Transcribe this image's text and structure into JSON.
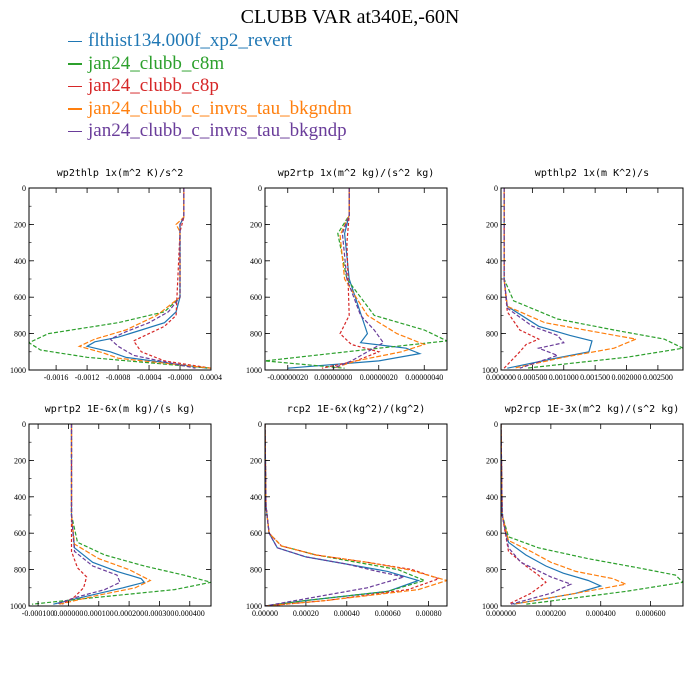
{
  "title": "CLUBB VAR at340E,-60N",
  "colors": {
    "flthist134.000f_xp2_revert": "#1f77b4",
    "jan24_clubb_c8m": "#2ca02c",
    "jan24_clubb_c8p": "#d62728",
    "jan24_clubb_c_invrs_tau_bkgndm": "#ff7f0e",
    "jan24_clubb_c_invrs_tau_bkgndp": "#6a3d9a"
  },
  "legend": [
    {
      "label": "flthist134.000f_xp2_revert",
      "color": "#1f77b4"
    },
    {
      "label": "jan24_clubb_c8m",
      "color": "#2ca02c"
    },
    {
      "label": "jan24_clubb_c8p",
      "color": "#d62728"
    },
    {
      "label": "jan24_clubb_c_invrs_tau_bkgndm",
      "color": "#ff7f0e"
    },
    {
      "label": "jan24_clubb_c_invrs_tau_bkgndp",
      "color": "#6a3d9a"
    }
  ],
  "chart_data": [
    {
      "type": "line",
      "title": "wp2thlp  1x(m^2 K)/s^2",
      "xlim": [
        -0.00195,
        0.0004
      ],
      "ylim": [
        1000,
        0
      ],
      "xticks": [
        "-0.0016",
        "-0.0012",
        "-0.0008",
        "-0.0004",
        "-0.0000",
        "0.0004"
      ],
      "xtick_values": [
        -0.0016,
        -0.0012,
        -0.0008,
        -0.0004,
        0.0,
        0.0004
      ],
      "yticks": [
        "0",
        "200",
        "400",
        "600",
        "800",
        "1000"
      ],
      "ytick_values": [
        0,
        200,
        400,
        600,
        800,
        1000
      ],
      "series": [
        {
          "name": "flthist134.000f_xp2_revert",
          "x": [
            5e-05,
            5e-05,
            0.0,
            0.0,
            0.0,
            -5e-05,
            -0.0002,
            -0.0005,
            -0.0008,
            -0.0011,
            -0.0012,
            -0.0009,
            -0.0007,
            0.00035
          ],
          "y": [
            0,
            160,
            200,
            240,
            600,
            680,
            740,
            780,
            820,
            845,
            870,
            900,
            930,
            990
          ]
        },
        {
          "name": "jan24_clubb_c8m",
          "x": [
            5e-05,
            5e-05,
            0.0,
            0.0,
            -0.0002,
            -0.0008,
            -0.0017,
            -0.00195,
            -0.0018,
            -0.0012,
            0.0004
          ],
          "y": [
            0,
            160,
            200,
            600,
            680,
            740,
            800,
            850,
            890,
            930,
            990
          ]
        },
        {
          "name": "jan24_clubb_c8p",
          "x": [
            5e-05,
            5e-05,
            0.0,
            -5e-05,
            -0.0002,
            -0.0004,
            -0.0006,
            -0.0005,
            -0.0002,
            0.0004
          ],
          "y": [
            0,
            160,
            240,
            700,
            760,
            800,
            840,
            900,
            950,
            990
          ]
        },
        {
          "name": "jan24_clubb_c_invrs_tau_bkgndm",
          "x": [
            5e-05,
            5e-05,
            -5e-05,
            0.0,
            0.0,
            -0.0003,
            -0.0007,
            -0.0011,
            -0.0013,
            -0.001,
            -0.0008,
            0.0004
          ],
          "y": [
            0,
            160,
            200,
            240,
            600,
            700,
            780,
            830,
            870,
            905,
            935,
            990
          ]
        },
        {
          "name": "jan24_clubb_c_invrs_tau_bkgndp",
          "x": [
            5e-05,
            5e-05,
            0.0,
            0.0,
            -0.00015,
            -0.0004,
            -0.0007,
            -0.0009,
            -0.0008,
            -0.0006,
            0.0002
          ],
          "y": [
            0,
            160,
            200,
            600,
            680,
            740,
            790,
            830,
            870,
            920,
            990
          ]
        }
      ]
    },
    {
      "type": "line",
      "title": "wp2rtp  1x(m^2 kg)/(s^2 kg)",
      "xlim": [
        -3e-07,
        5e-07
      ],
      "ylim": [
        1000,
        0
      ],
      "xticks": [
        "-0.00000020",
        "0.00000000",
        "0.00000020",
        "0.00000040"
      ],
      "xtick_values": [
        -2e-07,
        0.0,
        2e-07,
        4e-07
      ],
      "yticks": [
        "0",
        "200",
        "400",
        "600",
        "800",
        "1000"
      ],
      "ytick_values": [
        0,
        200,
        400,
        600,
        800,
        1000
      ],
      "series": [
        {
          "name": "flthist134.000f_xp2_revert",
          "x": [
            7e-08,
            7e-08,
            5e-08,
            7e-08,
            1.5e-07,
            1.2e-07,
            3.2e-07,
            3.8e-07,
            2e-07,
            -2e-07
          ],
          "y": [
            0,
            150,
            250,
            500,
            800,
            850,
            880,
            910,
            950,
            990
          ]
        },
        {
          "name": "jan24_clubb_c8m",
          "x": [
            7e-08,
            7e-08,
            2e-08,
            6e-08,
            1.8e-07,
            4e-07,
            5e-07,
            2e-07,
            -3e-07,
            5e-08
          ],
          "y": [
            0,
            150,
            250,
            500,
            700,
            780,
            840,
            880,
            950,
            990
          ]
        },
        {
          "name": "jan24_clubb_c8p",
          "x": [
            7e-08,
            7e-08,
            6e-08,
            7e-08,
            3e-08,
            8e-08,
            2e-07,
            1e-07,
            -5e-08
          ],
          "y": [
            0,
            150,
            300,
            700,
            800,
            860,
            900,
            950,
            990
          ]
        },
        {
          "name": "jan24_clubb_c_invrs_tau_bkgndm",
          "x": [
            7e-08,
            7e-08,
            3e-08,
            5e-08,
            1.5e-07,
            2.8e-07,
            4e-07,
            3e-07,
            1e-07,
            0.0
          ],
          "y": [
            0,
            150,
            260,
            500,
            700,
            800,
            860,
            900,
            950,
            990
          ]
        },
        {
          "name": "jan24_clubb_c_invrs_tau_bkgndp",
          "x": [
            7e-08,
            7e-08,
            4e-08,
            6e-08,
            1.2e-07,
            1.8e-07,
            2.2e-07,
            1.5e-07,
            8e-08,
            0.0
          ],
          "y": [
            0,
            150,
            250,
            500,
            700,
            780,
            850,
            900,
            950,
            990
          ]
        }
      ]
    },
    {
      "type": "line",
      "title": "wpthlp2  1x(m K^2)/s",
      "xlim": [
        0.0,
        0.0029
      ],
      "ylim": [
        1000,
        0
      ],
      "xticks": [
        "0.000000",
        "0.000500",
        "0.001000",
        "0.001500",
        "0.002000",
        "0.002500"
      ],
      "xtick_values": [
        0.0,
        0.0005,
        0.001,
        0.0015,
        0.002,
        0.0025
      ],
      "yticks": [
        "0",
        "200",
        "400",
        "600",
        "800",
        "1000"
      ],
      "ytick_values": [
        0,
        200,
        400,
        600,
        800,
        1000
      ],
      "series": [
        {
          "name": "flthist134.000f_xp2_revert",
          "x": [
            5e-05,
            5e-05,
            0.0001,
            0.0006,
            0.0011,
            0.00145,
            0.0014,
            0.0008,
            0.0001
          ],
          "y": [
            0,
            500,
            650,
            760,
            810,
            840,
            900,
            940,
            990
          ]
        },
        {
          "name": "jan24_clubb_c8m",
          "x": [
            5e-05,
            5e-05,
            0.0002,
            0.0009,
            0.0018,
            0.0026,
            0.0029,
            0.002,
            0.0004
          ],
          "y": [
            0,
            500,
            620,
            720,
            780,
            830,
            880,
            930,
            990
          ]
        },
        {
          "name": "jan24_clubb_c8p",
          "x": [
            5e-05,
            5e-05,
            0.0001,
            0.0003,
            0.0006,
            0.0004,
            0.0003,
            5e-05
          ],
          "y": [
            0,
            500,
            680,
            780,
            830,
            860,
            900,
            990
          ]
        },
        {
          "name": "jan24_clubb_c_invrs_tau_bkgndm",
          "x": [
            5e-05,
            5e-05,
            0.0001,
            0.0007,
            0.0015,
            0.00215,
            0.0018,
            0.001,
            0.0002
          ],
          "y": [
            0,
            500,
            650,
            740,
            790,
            830,
            880,
            930,
            990
          ]
        },
        {
          "name": "jan24_clubb_c_invrs_tau_bkgndp",
          "x": [
            5e-05,
            5e-05,
            0.0001,
            0.0005,
            0.0009,
            0.001,
            0.0006,
            0.0009,
            0.0003
          ],
          "y": [
            0,
            500,
            660,
            760,
            810,
            850,
            880,
            920,
            990
          ]
        }
      ]
    },
    {
      "type": "line",
      "title": "wprtp2  1E-6x(m kg)/(s kg)",
      "xlim": [
        -0.00013,
        0.00047
      ],
      "ylim": [
        1000,
        0
      ],
      "xticks": [
        "-0.000100",
        "0.000000",
        "0.000100",
        "0.000200",
        "0.000300",
        "0.000400"
      ],
      "xtick_values": [
        -0.0001,
        0.0,
        0.0001,
        0.0002,
        0.0003,
        0.0004
      ],
      "yticks": [
        "0",
        "200",
        "400",
        "600",
        "800",
        "1000"
      ],
      "ytick_values": [
        0,
        200,
        400,
        600,
        800,
        1000
      ],
      "series": [
        {
          "name": "flthist134.000f_xp2_revert",
          "x": [
            1e-05,
            1e-05,
            2e-05,
            8e-05,
            0.00016,
            0.00024,
            0.00025,
            0.00018,
            5e-05,
            -5e-05
          ],
          "y": [
            0,
            500,
            680,
            760,
            810,
            850,
            870,
            900,
            950,
            990
          ]
        },
        {
          "name": "jan24_clubb_c8m",
          "x": [
            1e-05,
            1e-05,
            3e-05,
            0.00012,
            0.00025,
            0.00038,
            0.00047,
            0.00035,
            5e-05,
            -0.00012
          ],
          "y": [
            0,
            500,
            650,
            720,
            780,
            830,
            870,
            910,
            960,
            990
          ]
        },
        {
          "name": "jan24_clubb_c8p",
          "x": [
            1e-05,
            1e-05,
            1e-05,
            3e-05,
            6e-05,
            5e-05,
            2e-05,
            -2e-05
          ],
          "y": [
            0,
            500,
            700,
            790,
            840,
            900,
            950,
            990
          ]
        },
        {
          "name": "jan24_clubb_c_invrs_tau_bkgndm",
          "x": [
            1e-05,
            1e-05,
            2e-05,
            0.0001,
            0.0002,
            0.00027,
            0.00022,
            0.0001,
            -3e-05
          ],
          "y": [
            0,
            500,
            660,
            740,
            800,
            860,
            900,
            940,
            990
          ]
        },
        {
          "name": "jan24_clubb_c_invrs_tau_bkgndp",
          "x": [
            1e-05,
            1e-05,
            2e-05,
            8e-05,
            0.00016,
            0.00017,
            0.00012,
            3e-05,
            -4e-05
          ],
          "y": [
            0,
            500,
            700,
            780,
            830,
            870,
            910,
            950,
            990
          ]
        }
      ]
    },
    {
      "type": "line",
      "title": "rcp2  1E-6x(kg^2)/(kg^2)",
      "xlim": [
        0.0,
        0.00089
      ],
      "ylim": [
        1000,
        0
      ],
      "xticks": [
        "0.00000",
        "0.00020",
        "0.00040",
        "0.00060",
        "0.00080"
      ],
      "xtick_values": [
        0.0,
        0.0002,
        0.0004,
        0.0006,
        0.0008
      ],
      "yticks": [
        "0",
        "200",
        "400",
        "600",
        "800",
        "1000"
      ],
      "ytick_values": [
        0,
        200,
        400,
        600,
        800,
        1000
      ],
      "series": [
        {
          "name": "flthist134.000f_xp2_revert",
          "x": [
            0.0,
            5e-06,
            2e-05,
            6e-05,
            0.0002,
            0.0004,
            0.0006,
            0.00075,
            0.0006,
            0.0002,
            0.0
          ],
          "y": [
            0,
            450,
            600,
            680,
            730,
            770,
            810,
            860,
            920,
            970,
            1000
          ]
        },
        {
          "name": "jan24_clubb_c8m",
          "x": [
            0.0,
            5e-06,
            2e-05,
            8e-05,
            0.00025,
            0.00045,
            0.00065,
            0.00078,
            0.0006,
            0.0002,
            0.0
          ],
          "y": [
            0,
            450,
            600,
            670,
            720,
            760,
            800,
            860,
            920,
            970,
            1000
          ]
        },
        {
          "name": "jan24_clubb_c8p",
          "x": [
            0.0,
            5e-06,
            2e-05,
            8e-05,
            0.00025,
            0.0005,
            0.00072,
            0.00085,
            0.0007,
            0.0003,
            0.0
          ],
          "y": [
            0,
            450,
            600,
            670,
            720,
            760,
            800,
            850,
            910,
            970,
            1000
          ]
        },
        {
          "name": "jan24_clubb_c_invrs_tau_bkgndm",
          "x": [
            0.0,
            5e-06,
            2e-05,
            8e-05,
            0.00025,
            0.0005,
            0.0007,
            0.00089,
            0.00075,
            0.0003,
            0.0
          ],
          "y": [
            0,
            450,
            600,
            670,
            720,
            760,
            800,
            860,
            910,
            970,
            1000
          ]
        },
        {
          "name": "jan24_clubb_c_invrs_tau_bkgndp",
          "x": [
            0.0,
            5e-06,
            2e-05,
            6e-05,
            0.0002,
            0.0004,
            0.00055,
            0.00068,
            0.0005,
            0.0002,
            0.0
          ],
          "y": [
            0,
            450,
            600,
            680,
            730,
            770,
            810,
            840,
            900,
            960,
            1000
          ]
        }
      ]
    },
    {
      "type": "line",
      "title": "wp2rcp  1E-3x(m^2 kg)/(s^2 kg)",
      "xlim": [
        0.0,
        0.00073
      ],
      "ylim": [
        1000,
        0
      ],
      "xticks": [
        "0.000000",
        "0.000200",
        "0.000400",
        "0.000600"
      ],
      "xtick_values": [
        0.0,
        0.0002,
        0.0004,
        0.0006
      ],
      "yticks": [
        "0",
        "200",
        "400",
        "600",
        "800",
        "1000"
      ],
      "ytick_values": [
        0,
        200,
        400,
        600,
        800,
        1000
      ],
      "series": [
        {
          "name": "flthist134.000f_xp2_revert",
          "x": [
            0.0,
            5e-06,
            3e-05,
            0.0001,
            0.00018,
            0.00025,
            0.00035,
            0.0004,
            0.0003,
            5e-05
          ],
          "y": [
            0,
            500,
            650,
            720,
            780,
            820,
            860,
            890,
            930,
            990
          ]
        },
        {
          "name": "jan24_clubb_c8m",
          "x": [
            0.0,
            5e-06,
            3e-05,
            0.00015,
            0.00035,
            0.00055,
            0.0007,
            0.00073,
            0.0005,
            0.0001
          ],
          "y": [
            0,
            500,
            620,
            680,
            740,
            790,
            830,
            870,
            920,
            990
          ]
        },
        {
          "name": "jan24_clubb_c8p",
          "x": [
            0.0,
            5e-06,
            3e-05,
            0.0001,
            0.00015,
            0.00018,
            0.00012,
            3e-05
          ],
          "y": [
            0,
            500,
            700,
            780,
            830,
            870,
            930,
            990
          ]
        },
        {
          "name": "jan24_clubb_c_invrs_tau_bkgndm",
          "x": [
            0.0,
            5e-06,
            3e-05,
            0.00012,
            0.0002,
            0.0003,
            0.00045,
            0.0005,
            0.0003,
            5e-05
          ],
          "y": [
            0,
            500,
            640,
            700,
            760,
            810,
            850,
            880,
            930,
            990
          ]
        },
        {
          "name": "jan24_clubb_c_invrs_tau_bkgndp",
          "x": [
            0.0,
            5e-06,
            3e-05,
            8e-05,
            0.00014,
            0.0002,
            0.00028,
            0.0002,
            4e-05
          ],
          "y": [
            0,
            500,
            680,
            760,
            800,
            840,
            880,
            930,
            990
          ]
        }
      ]
    }
  ]
}
